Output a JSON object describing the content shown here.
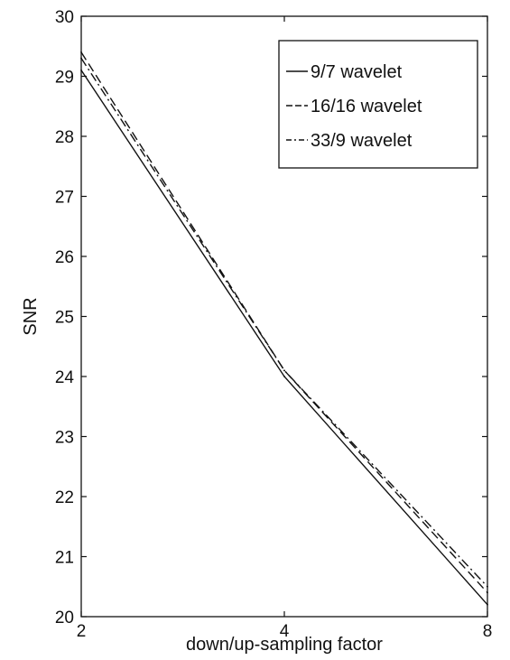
{
  "chart_data": {
    "type": "line",
    "x": [
      2,
      4,
      8
    ],
    "x_tick_labels": [
      "2",
      "4",
      "8"
    ],
    "xlabel": "down/up-sampling factor",
    "ylabel": "SNR",
    "xlim": [
      2,
      8
    ],
    "ylim": [
      20,
      30
    ],
    "y_ticks": [
      20,
      21,
      22,
      23,
      24,
      25,
      26,
      27,
      28,
      29,
      30
    ],
    "grid": false,
    "legend_position": "top-right",
    "series": [
      {
        "name": "9/7 wavelet",
        "values": [
          29.1,
          24.0,
          20.2
        ],
        "style": "solid",
        "color": "#111111"
      },
      {
        "name": "16/16 wavelet",
        "values": [
          29.4,
          24.1,
          20.4
        ],
        "style": "dashed",
        "color": "#111111"
      },
      {
        "name": "33/9 wavelet",
        "values": [
          29.3,
          24.1,
          20.5
        ],
        "style": "dashdot",
        "color": "#111111"
      }
    ]
  }
}
